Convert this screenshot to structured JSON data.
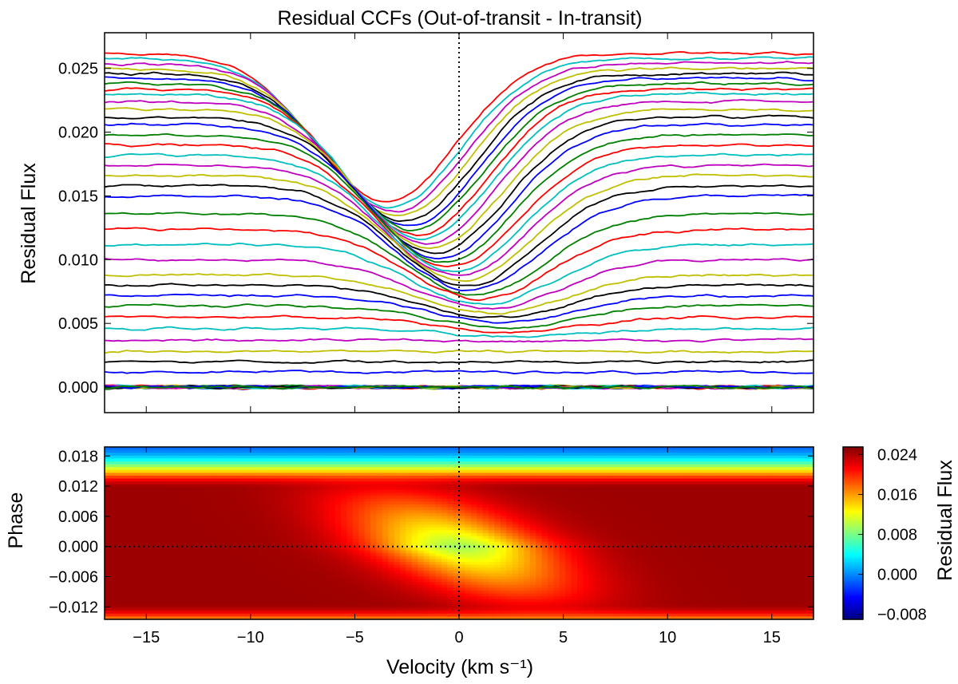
{
  "chart_data": [
    {
      "type": "line",
      "title": "Residual CCFs (Out-of-transit - In-transit)",
      "xlabel": "",
      "ylabel": "Residual Flux",
      "xlim": [
        -17,
        17
      ],
      "ylim": [
        -0.002,
        0.0278
      ],
      "yticks": [
        0.0,
        0.005,
        0.01,
        0.015,
        0.02,
        0.025
      ],
      "ytick_labels": [
        "0.000",
        "0.005",
        "0.010",
        "0.015",
        "0.020",
        "0.025"
      ],
      "vline_x": 0,
      "series_colors": [
        "#0000ff",
        "#008000",
        "#ff0000",
        "#00bfbf",
        "#bf00bf",
        "#bfbf00",
        "#000000"
      ],
      "series_summary": {
        "in_transit_baselines": [
          0.0262,
          0.0258,
          0.0254,
          0.025,
          0.0246,
          0.0242,
          0.0238,
          0.0234,
          0.023,
          0.0224,
          0.0218,
          0.0212,
          0.0206,
          0.0198,
          0.019,
          0.0182,
          0.0174,
          0.0166,
          0.0158,
          0.015,
          0.0136,
          0.0124,
          0.0112,
          0.01,
          0.0088,
          0.008,
          0.0072,
          0.0064,
          0.0055,
          0.0046,
          0.0037,
          0.0028,
          0.002,
          0.0012
        ],
        "out_of_transit_count": 30,
        "out_of_transit_level": 0.0
      }
    },
    {
      "type": "heatmap",
      "title": "",
      "xlabel": "Velocity (km s⁻¹)",
      "ylabel": "Phase",
      "xlim": [
        -17,
        17
      ],
      "ylim": [
        -0.0145,
        0.0198
      ],
      "xticks": [
        -15,
        -10,
        -5,
        0,
        5,
        10,
        15
      ],
      "xtick_labels": [
        "−15",
        "−10",
        "−5",
        "0",
        "5",
        "10",
        "15"
      ],
      "yticks": [
        0.018,
        0.012,
        0.006,
        0.0,
        -0.006,
        -0.012
      ],
      "ytick_labels": [
        "0.018",
        "0.012",
        "0.006",
        "0.000",
        "−0.006",
        "−0.012"
      ],
      "vline_x": 0,
      "hline_y": 0,
      "transit_half_width_phase": 0.0115,
      "colorbar": {
        "label": "Residual Flux",
        "range": [
          -0.009,
          0.0255
        ],
        "ticks": [
          0.024,
          0.016,
          0.008,
          0.0,
          -0.008
        ],
        "tick_labels": [
          "0.024",
          "0.016",
          "0.008",
          "0.000",
          "−0.008"
        ]
      }
    }
  ]
}
